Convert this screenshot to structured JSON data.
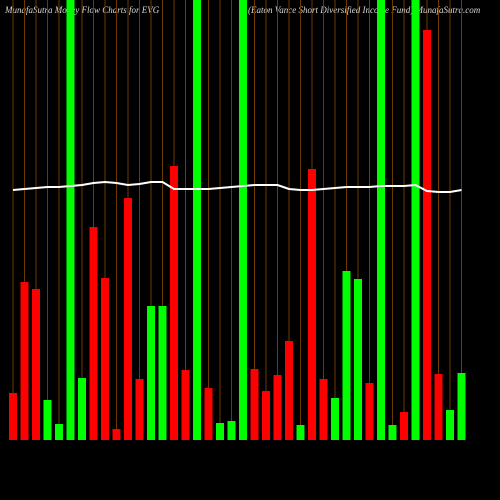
{
  "chart_data": {
    "type": "bar",
    "title": "MunafaSutra  Money Flow  Charts for EVG",
    "subtitle": "(Eaton  Vance   Short Diversified Income   Fund) MunafaSutra.com",
    "categories": [
      null,
      null,
      null,
      null,
      null,
      null,
      null,
      null,
      null,
      null,
      null,
      null,
      null,
      null,
      null,
      null,
      null,
      null,
      null,
      null,
      null,
      null,
      null,
      null,
      null,
      null,
      null,
      null,
      null,
      null,
      null,
      null,
      null,
      null,
      null,
      null,
      null,
      null,
      null,
      null
    ],
    "values": [
      47,
      158,
      151,
      40,
      16,
      440,
      62,
      213,
      162,
      11,
      242,
      61,
      134,
      134,
      274,
      70,
      440,
      52,
      17,
      19,
      440,
      71,
      49,
      65,
      99,
      15,
      271,
      61,
      42,
      169,
      161,
      57,
      440,
      15,
      28,
      440,
      410,
      66,
      30,
      67
    ],
    "colors": [
      "#ff0000",
      "#ff0000",
      "#ff0000",
      "#00ff00",
      "#00ff00",
      "#00ff00",
      "#00ff00",
      "#ff0000",
      "#ff0000",
      "#ff0000",
      "#ff0000",
      "#ff0000",
      "#00ff00",
      "#00ff00",
      "#ff0000",
      "#ff0000",
      "#00ff00",
      "#ff0000",
      "#00ff00",
      "#00ff00",
      "#00ff00",
      "#ff0000",
      "#ff0000",
      "#ff0000",
      "#ff0000",
      "#00ff00",
      "#ff0000",
      "#ff0000",
      "#00ff00",
      "#00ff00",
      "#00ff00",
      "#ff0000",
      "#00ff00",
      "#00ff00",
      "#ff0000",
      "#00ff00",
      "#ff0000",
      "#ff0000",
      "#00ff00",
      "#00ff00"
    ],
    "line_values": [
      250,
      251,
      252,
      253,
      253,
      254,
      255,
      257,
      258,
      257,
      255,
      256,
      258,
      258,
      251,
      251,
      251,
      251,
      252,
      253,
      254,
      255,
      255,
      255,
      251,
      250,
      250,
      251,
      252,
      253,
      253,
      253,
      254,
      254,
      254,
      255,
      249,
      248,
      248,
      250
    ],
    "line_color": "#ffffff",
    "ylim": [
      0,
      440
    ]
  }
}
